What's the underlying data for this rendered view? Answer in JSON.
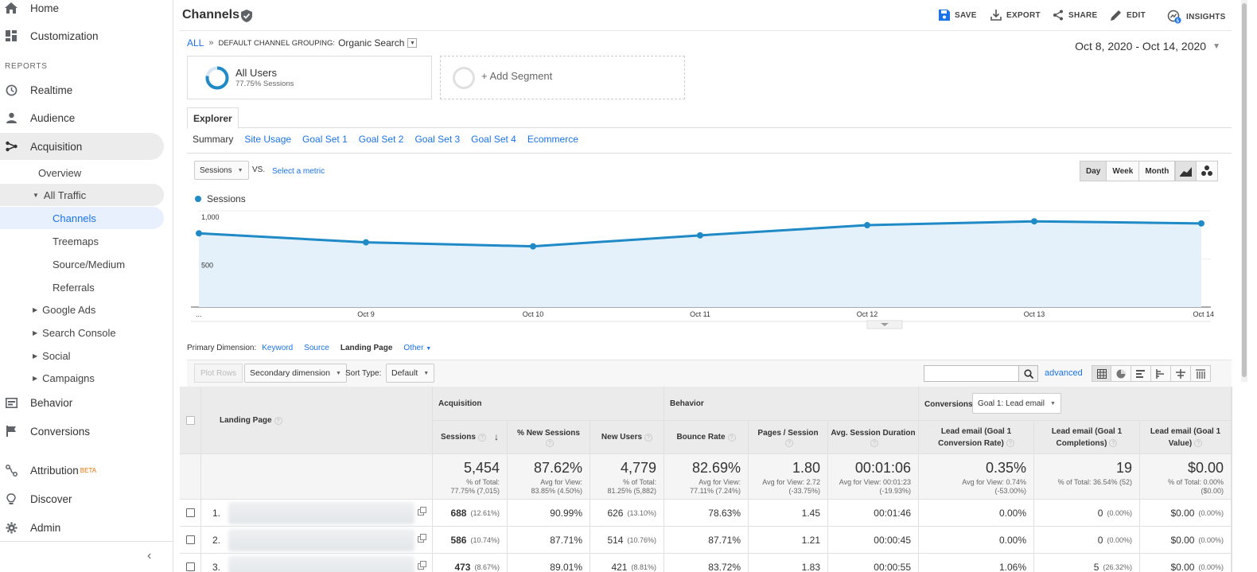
{
  "sidebar": {
    "home": "Home",
    "customization": "Customization",
    "reports_label": "REPORTS",
    "realtime": "Realtime",
    "audience": "Audience",
    "acquisition": "Acquisition",
    "overview": "Overview",
    "all_traffic": "All Traffic",
    "channels": "Channels",
    "treemaps": "Treemaps",
    "source_medium": "Source/Medium",
    "referrals": "Referrals",
    "google_ads": "Google Ads",
    "search_console": "Search Console",
    "social": "Social",
    "campaigns": "Campaigns",
    "behavior": "Behavior",
    "conversions": "Conversions",
    "attribution": "Attribution",
    "beta": "BETA",
    "discover": "Discover",
    "admin": "Admin"
  },
  "header": {
    "title": "Channels",
    "save": "SAVE",
    "export": "EXPORT",
    "share": "SHARE",
    "edit": "EDIT",
    "insights": "INSIGHTS",
    "insights_badge": "5"
  },
  "breadcrumb": {
    "all": "ALL",
    "separator": "»",
    "grouping": "DEFAULT CHANNEL GROUPING:",
    "value": "Organic Search"
  },
  "date_range": "Oct 8, 2020 - Oct 14, 2020",
  "segments": {
    "all_users": "All Users",
    "all_users_sub": "77.75% Sessions",
    "add_segment": "+ Add Segment"
  },
  "explorer_tab": "Explorer",
  "subtabs": [
    "Summary",
    "Site Usage",
    "Goal Set 1",
    "Goal Set 2",
    "Goal Set 3",
    "Goal Set 4",
    "Ecommerce"
  ],
  "chart_controls": {
    "metric": "Sessions",
    "vs": "VS.",
    "select_metric": "Select a metric",
    "day": "Day",
    "week": "Week",
    "month": "Month"
  },
  "chart_data": {
    "type": "area",
    "legend": "Sessions",
    "x": [
      "...",
      "Oct 9",
      "Oct 10",
      "Oct 11",
      "Oct 12",
      "Oct 13",
      "Oct 14"
    ],
    "series": [
      {
        "name": "Sessions",
        "values": [
          766,
          673,
          631,
          745,
          851,
          891,
          869
        ]
      }
    ],
    "yticks": [
      "1,000",
      "500"
    ],
    "ylim": [
      0,
      1000
    ],
    "colors": {
      "line": "#1f8ac6",
      "fill": "#e4f1fa"
    }
  },
  "primary_dimension": {
    "label": "Primary Dimension:",
    "options": [
      "Keyword",
      "Source",
      "Landing Page",
      "Other"
    ],
    "current": "Landing Page"
  },
  "toolbar": {
    "plot_rows": "Plot Rows",
    "secondary_dimension": "Secondary dimension",
    "sort_type_label": "Sort Type:",
    "sort_type_value": "Default",
    "advanced": "advanced"
  },
  "table": {
    "landing_page": "Landing Page",
    "groups": {
      "acquisition": "Acquisition",
      "behavior": "Behavior",
      "conversions": "Conversions",
      "goal_select": "Goal 1: Lead email"
    },
    "columns": {
      "sessions": "Sessions",
      "new_sessions": "% New Sessions",
      "new_users": "New Users",
      "bounce_rate": "Bounce Rate",
      "pages_session": "Pages / Session",
      "avg_duration": "Avg. Session Duration",
      "conv_rate_1": "Lead email (Goal 1",
      "conv_rate_2": "Conversion Rate)",
      "completions_1": "Lead email (Goal 1",
      "completions_2": "Completions)",
      "value_1": "Lead email (Goal 1",
      "value_2": "Value)"
    },
    "totals": {
      "sessions": "5,454",
      "sessions_sub1": "% of Total:",
      "sessions_sub2": "77.75% (7,015)",
      "new_sessions": "87.62%",
      "new_sessions_sub1": "Avg for View:",
      "new_sessions_sub2": "83.85% (4.50%)",
      "new_users": "4,779",
      "new_users_sub1": "% of Total:",
      "new_users_sub2": "81.25% (5,882)",
      "bounce_rate": "82.69%",
      "bounce_rate_sub1": "Avg for View:",
      "bounce_rate_sub2": "77.11% (7.24%)",
      "pages_session": "1.80",
      "pages_session_sub1": "Avg for View: 2.72",
      "pages_session_sub2": "(-33.75%)",
      "avg_duration": "00:01:06",
      "avg_duration_sub1": "Avg for View: 00:01:23",
      "avg_duration_sub2": "(-19.93%)",
      "conv_rate": "0.35%",
      "conv_rate_sub1": "Avg for View: 0.74%",
      "conv_rate_sub2": "(-53.00%)",
      "completions": "19",
      "completions_sub1": "% of Total: 36.54% (52)",
      "value": "$0.00",
      "value_sub1": "% of Total: 0.00%",
      "value_sub2": "($0.00)"
    },
    "rows": [
      {
        "index": "1.",
        "sessions": "688",
        "sessions_pct": "(12.61%)",
        "new_sessions": "90.99%",
        "new_users": "626",
        "new_users_pct": "(13.10%)",
        "bounce": "78.63%",
        "pages": "1.45",
        "duration": "00:01:46",
        "conv": "0.00%",
        "completions": "0",
        "completions_pct": "(0.00%)",
        "value": "$0.00",
        "value_pct": "(0.00%)"
      },
      {
        "index": "2.",
        "sessions": "586",
        "sessions_pct": "(10.74%)",
        "new_sessions": "87.71%",
        "new_users": "514",
        "new_users_pct": "(10.76%)",
        "bounce": "87.71%",
        "pages": "1.21",
        "duration": "00:00:45",
        "conv": "0.00%",
        "completions": "0",
        "completions_pct": "(0.00%)",
        "value": "$0.00",
        "value_pct": "(0.00%)"
      },
      {
        "index": "3.",
        "sessions": "473",
        "sessions_pct": "(8.67%)",
        "new_sessions": "89.01%",
        "new_users": "421",
        "new_users_pct": "(8.81%)",
        "bounce": "83.72%",
        "pages": "1.83",
        "duration": "00:00:55",
        "conv": "1.06%",
        "completions": "5",
        "completions_pct": "(26.32%)",
        "value": "$0.00",
        "value_pct": "(0.00%)"
      }
    ]
  }
}
